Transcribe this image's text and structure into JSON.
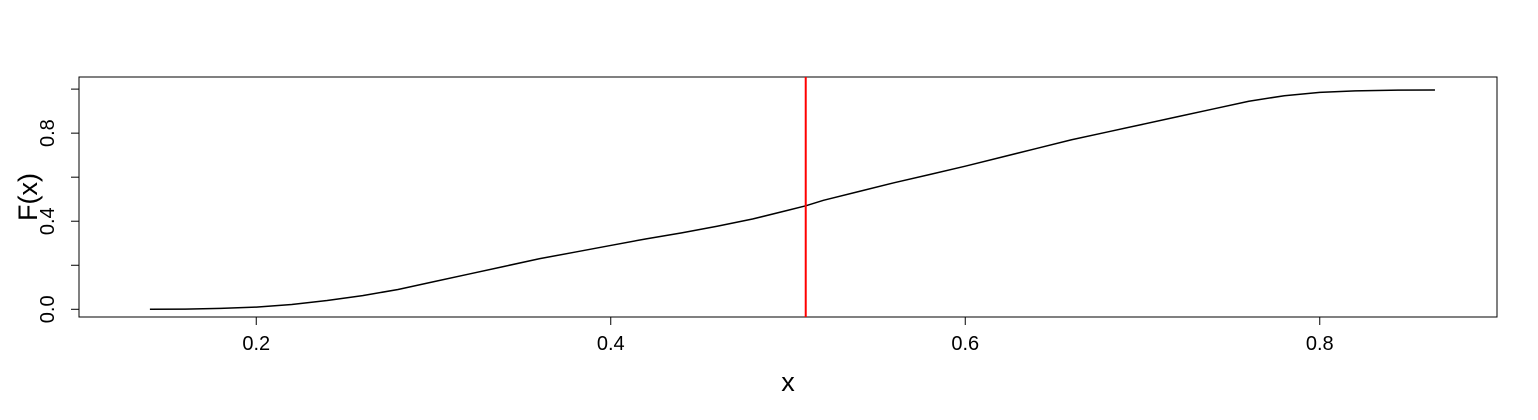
{
  "chart_data": {
    "type": "line",
    "title": "",
    "xlabel": "x",
    "ylabel": "F(x)",
    "xlim": [
      0.1,
      0.9
    ],
    "ylim": [
      -0.035,
      1.055
    ],
    "x_ticks": [
      0.2,
      0.4,
      0.6,
      0.8
    ],
    "x_tick_labels": [
      "0.2",
      "0.4",
      "0.6",
      "0.8"
    ],
    "y_ticks": [
      0.0,
      0.2,
      0.4,
      0.6,
      0.8,
      1.0
    ],
    "y_tick_labels": [
      "0.0",
      "",
      "0.4",
      "",
      "0.8",
      ""
    ],
    "grid": false,
    "series": [
      {
        "color": "#000000",
        "x": [
          0.14,
          0.16,
          0.18,
          0.2,
          0.22,
          0.24,
          0.26,
          0.28,
          0.3,
          0.32,
          0.34,
          0.36,
          0.38,
          0.4,
          0.42,
          0.44,
          0.46,
          0.48,
          0.5,
          0.51,
          0.52,
          0.54,
          0.56,
          0.58,
          0.6,
          0.62,
          0.64,
          0.66,
          0.68,
          0.7,
          0.72,
          0.74,
          0.76,
          0.78,
          0.8,
          0.82,
          0.84,
          0.865
        ],
        "y": [
          0.0,
          0.001,
          0.004,
          0.01,
          0.022,
          0.04,
          0.062,
          0.09,
          0.125,
          0.16,
          0.195,
          0.23,
          0.26,
          0.29,
          0.32,
          0.347,
          0.377,
          0.41,
          0.45,
          0.47,
          0.495,
          0.535,
          0.575,
          0.612,
          0.65,
          0.69,
          0.73,
          0.77,
          0.805,
          0.84,
          0.875,
          0.91,
          0.945,
          0.97,
          0.985,
          0.992,
          0.995,
          0.996
        ]
      }
    ],
    "vline": {
      "x": 0.51,
      "color": "#ff0000"
    }
  }
}
